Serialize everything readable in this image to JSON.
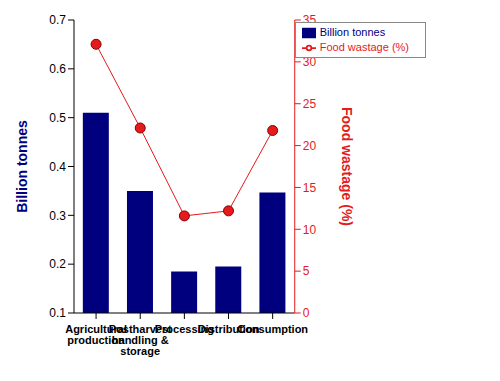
{
  "chart_data": {
    "type": "bar",
    "categories": [
      "Agricultural production",
      "Postharvest handling & storage",
      "Processing",
      "Distribution",
      "Consumption"
    ],
    "series": [
      {
        "name": "Billion tonnes",
        "type": "bar",
        "color": "#00007f",
        "values": [
          0.51,
          0.35,
          0.185,
          0.195,
          0.347
        ]
      },
      {
        "name": "Food wastage (%)",
        "type": "line",
        "axis": "y2",
        "color": "#e41a1c",
        "marker": "circle",
        "line_style": "solid",
        "values": [
          32.1,
          22.1,
          11.6,
          12.2,
          21.8
        ]
      }
    ],
    "ylabel": "Billion tonnes",
    "y2label": "Food wastage (%)",
    "ylim": [
      0.1,
      0.7
    ],
    "yticks": [
      0.1,
      0.2,
      0.3,
      0.4,
      0.5,
      0.6,
      0.7
    ],
    "y2lim": [
      0,
      35
    ],
    "y2ticks": [
      0,
      5,
      10,
      15,
      20,
      25,
      30,
      35
    ],
    "legend": "upper right"
  }
}
